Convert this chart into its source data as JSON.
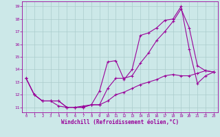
{
  "xlabel": "Windchill (Refroidissement éolien,°C)",
  "bg_color": "#cce8e8",
  "line_color": "#990099",
  "grid_color": "#aacccc",
  "xlim": [
    -0.5,
    23.5
  ],
  "ylim": [
    10.6,
    19.4
  ],
  "yticks": [
    11,
    12,
    13,
    14,
    15,
    16,
    17,
    18,
    19
  ],
  "xticks": [
    0,
    1,
    2,
    3,
    4,
    5,
    6,
    7,
    8,
    9,
    10,
    11,
    12,
    13,
    14,
    15,
    16,
    17,
    18,
    19,
    20,
    21,
    22,
    23
  ],
  "line1_x": [
    0,
    1,
    2,
    3,
    4,
    5,
    6,
    7,
    8,
    9,
    10,
    11,
    12,
    13,
    14,
    15,
    16,
    17,
    18,
    19,
    20,
    21,
    22,
    23
  ],
  "line1_y": [
    13.3,
    12.0,
    11.5,
    11.5,
    11.1,
    11.0,
    11.0,
    11.1,
    11.2,
    12.3,
    14.6,
    14.7,
    13.2,
    14.0,
    16.7,
    16.9,
    17.3,
    17.9,
    18.0,
    19.0,
    15.6,
    12.9,
    13.5,
    13.8
  ],
  "line2_x": [
    0,
    1,
    2,
    3,
    4,
    5,
    6,
    7,
    8,
    9,
    10,
    11,
    12,
    13,
    14,
    15,
    16,
    17,
    18,
    19,
    20,
    21,
    22,
    23
  ],
  "line2_y": [
    13.3,
    12.0,
    11.5,
    11.5,
    11.5,
    11.0,
    11.0,
    11.0,
    11.2,
    11.2,
    12.5,
    13.3,
    13.3,
    13.5,
    14.5,
    15.3,
    16.3,
    17.0,
    17.8,
    18.8,
    17.3,
    14.3,
    13.9,
    13.8
  ],
  "line3_x": [
    0,
    1,
    2,
    3,
    4,
    5,
    6,
    7,
    8,
    9,
    10,
    11,
    12,
    13,
    14,
    15,
    16,
    17,
    18,
    19,
    20,
    21,
    22,
    23
  ],
  "line3_y": [
    13.3,
    12.0,
    11.5,
    11.5,
    11.5,
    11.0,
    11.0,
    11.0,
    11.2,
    11.2,
    11.5,
    12.0,
    12.2,
    12.5,
    12.8,
    13.0,
    13.2,
    13.5,
    13.6,
    13.5,
    13.5,
    13.7,
    13.9,
    13.8
  ]
}
